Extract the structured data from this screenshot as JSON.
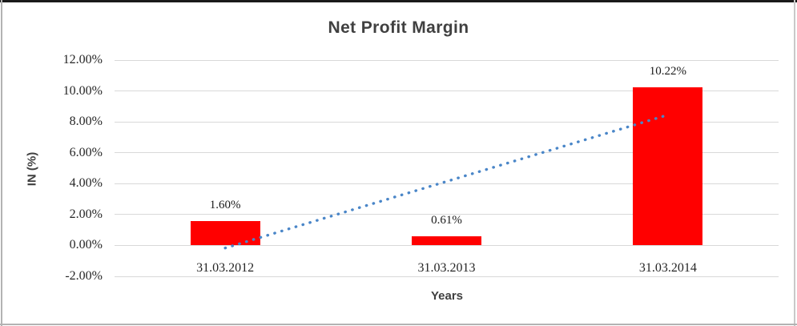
{
  "chart": {
    "title": "Net Profit Margin",
    "y_axis_title": "IN (%)",
    "x_axis_title": "Years"
  },
  "chart_data": {
    "type": "bar",
    "title": "Net Profit Margin",
    "xlabel": "Years",
    "ylabel": "IN (%)",
    "categories": [
      "31.03.2012",
      "31.03.2013",
      "31.03.2014"
    ],
    "values": [
      1.6,
      0.61,
      10.22
    ],
    "data_labels": [
      "1.60%",
      "0.61%",
      "10.22%"
    ],
    "ylim": [
      -2,
      12
    ],
    "yticks": [
      {
        "label": "12.00%",
        "value": 12
      },
      {
        "label": "10.00%",
        "value": 10
      },
      {
        "label": "8.00%",
        "value": 8
      },
      {
        "label": "6.00%",
        "value": 6
      },
      {
        "label": "4.00%",
        "value": 4
      },
      {
        "label": "2.00%",
        "value": 2
      },
      {
        "label": "0.00%",
        "value": 0
      },
      {
        "label": "-2.00%",
        "value": -2
      }
    ],
    "grid": "horizontal",
    "legend": "none",
    "bar_color": "#ff0000",
    "trendline": {
      "type": "linear",
      "style": "dotted",
      "color": "#4a86c8"
    }
  }
}
